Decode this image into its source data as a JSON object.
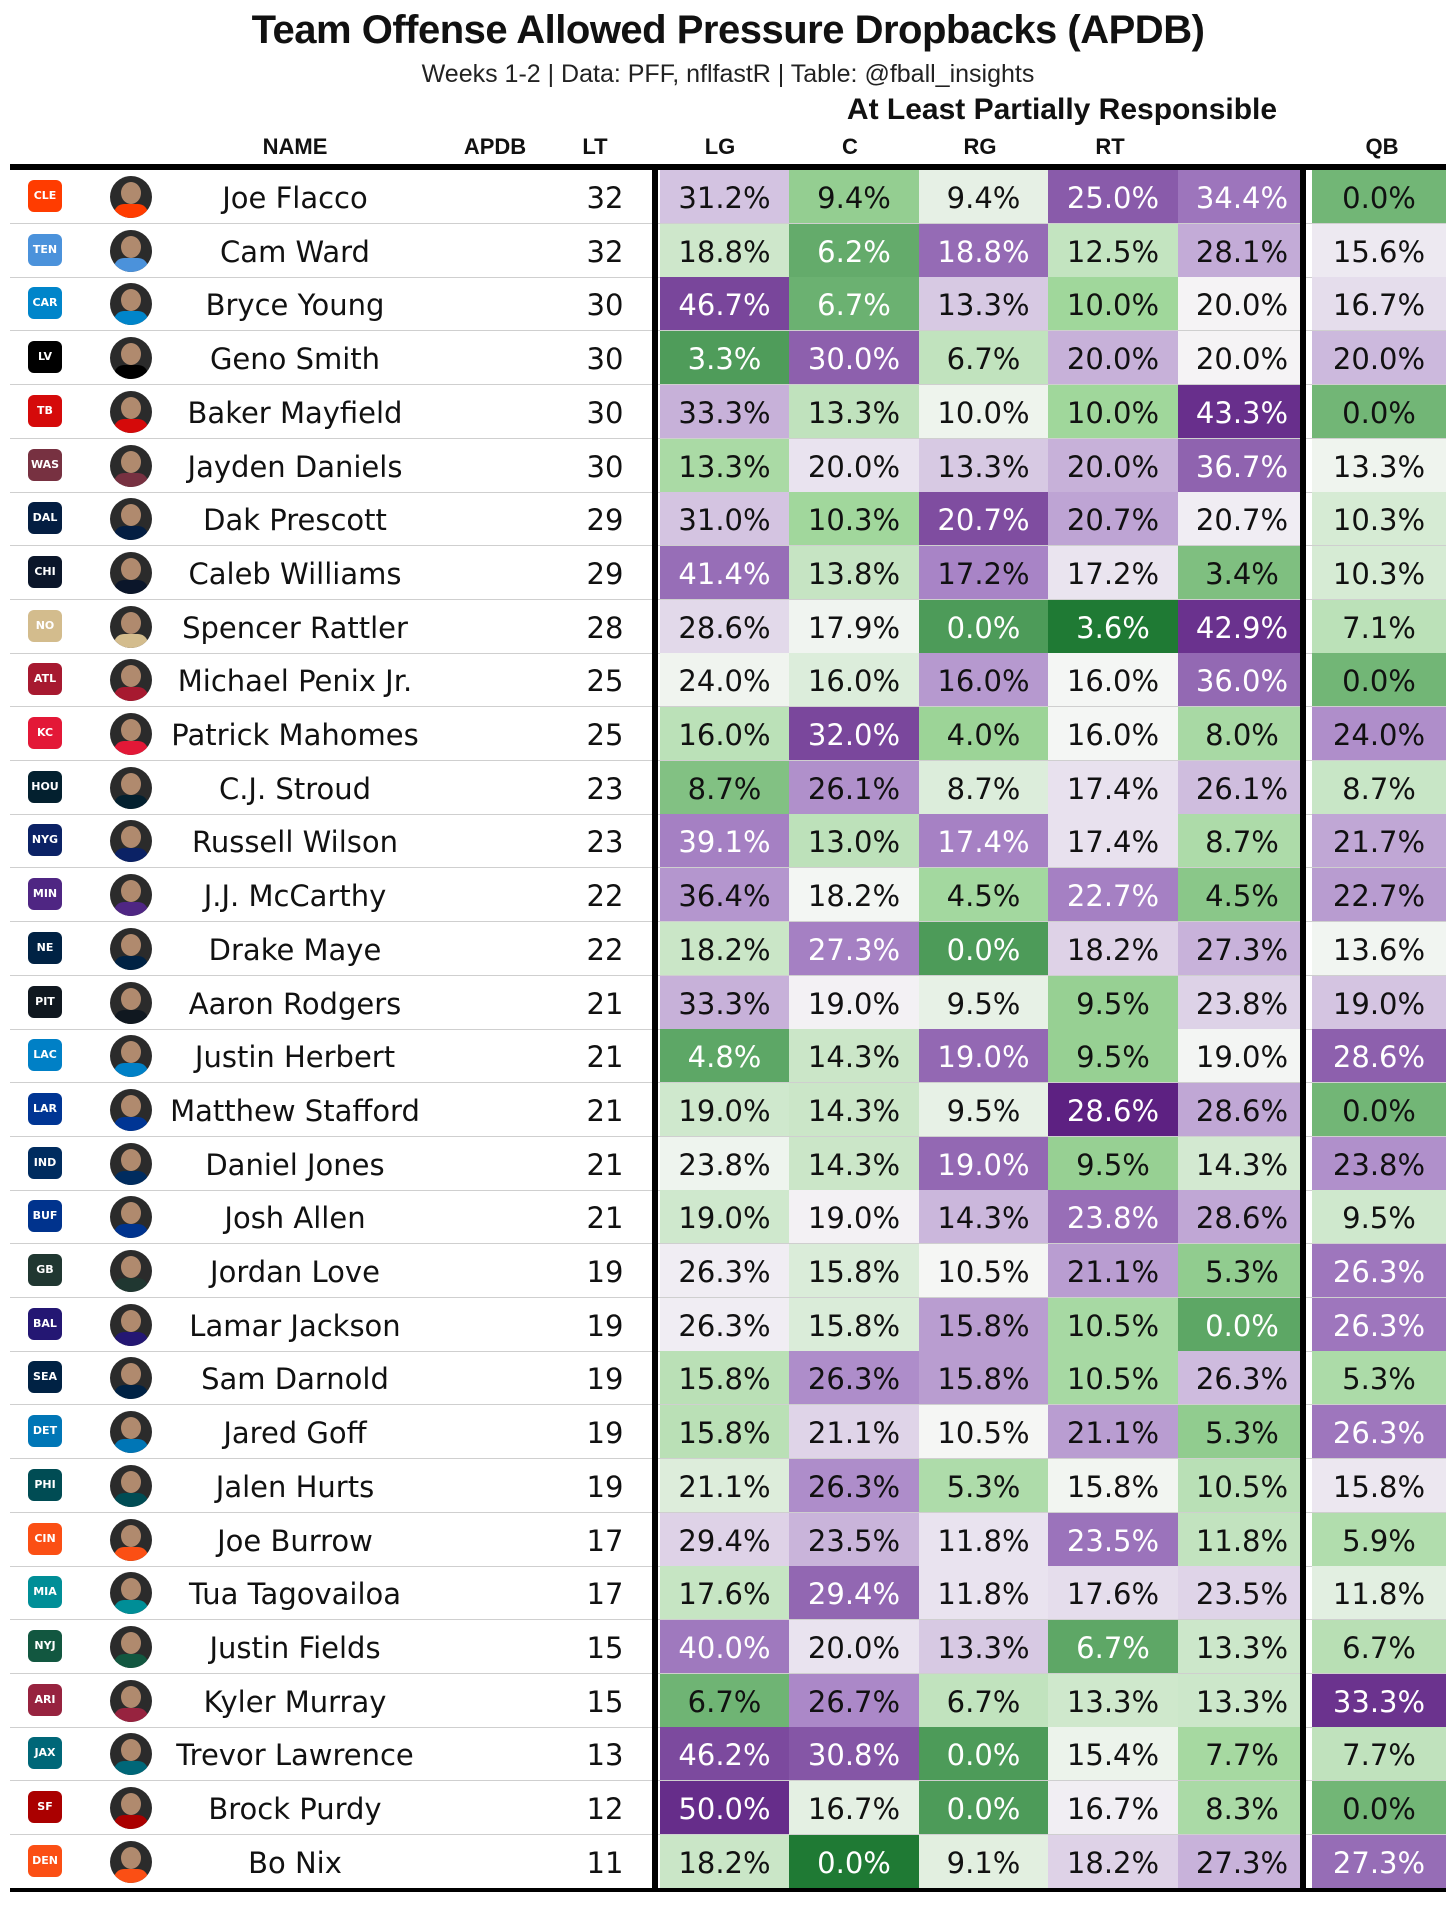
{
  "header": {
    "title": "Team Offense Allowed Pressure Dropbacks (APDB)",
    "subtitle": "Weeks 1-2 | Data: PFF, nflfastR | Table: @fball_insights",
    "spanner": "At Least Partially Responsible",
    "columns": {
      "name": "NAME",
      "apdb": "APDB",
      "lt": "LT",
      "lg": "LG",
      "c": "C",
      "rg": "RG",
      "rt": "RT",
      "qb": "QB"
    }
  },
  "chart_data": {
    "type": "table",
    "title": "Team Offense Allowed Pressure Dropbacks (APDB)",
    "subtitle": "Weeks 1-2 | Data: PFF, nflfastR | Table: @fball_insights",
    "columns": [
      "NAME",
      "APDB",
      "LT",
      "LG",
      "C",
      "RG",
      "RT",
      "QB"
    ],
    "rows": [
      {
        "team": "CLE",
        "name": "Joe Flacco",
        "apdb": 32,
        "values": [
          31.2,
          9.4,
          9.4,
          25.0,
          34.4,
          0.0
        ]
      },
      {
        "team": "TEN",
        "name": "Cam Ward",
        "apdb": 32,
        "values": [
          18.8,
          6.2,
          18.8,
          12.5,
          28.1,
          15.6
        ]
      },
      {
        "team": "CAR",
        "name": "Bryce Young",
        "apdb": 30,
        "values": [
          46.7,
          6.7,
          13.3,
          10.0,
          20.0,
          16.7
        ]
      },
      {
        "team": "LV",
        "name": "Geno Smith",
        "apdb": 30,
        "values": [
          3.3,
          30.0,
          6.7,
          20.0,
          20.0,
          20.0
        ]
      },
      {
        "team": "TB",
        "name": "Baker Mayfield",
        "apdb": 30,
        "values": [
          33.3,
          13.3,
          10.0,
          10.0,
          43.3,
          0.0
        ]
      },
      {
        "team": "WAS",
        "name": "Jayden Daniels",
        "apdb": 30,
        "values": [
          13.3,
          20.0,
          13.3,
          20.0,
          36.7,
          13.3
        ]
      },
      {
        "team": "DAL",
        "name": "Dak Prescott",
        "apdb": 29,
        "values": [
          31.0,
          10.3,
          20.7,
          20.7,
          20.7,
          10.3
        ]
      },
      {
        "team": "CHI",
        "name": "Caleb Williams",
        "apdb": 29,
        "values": [
          41.4,
          13.8,
          17.2,
          17.2,
          3.4,
          10.3
        ]
      },
      {
        "team": "NO",
        "name": "Spencer Rattler",
        "apdb": 28,
        "values": [
          28.6,
          17.9,
          0.0,
          3.6,
          42.9,
          7.1
        ]
      },
      {
        "team": "ATL",
        "name": "Michael Penix Jr.",
        "apdb": 25,
        "values": [
          24.0,
          16.0,
          16.0,
          16.0,
          36.0,
          0.0
        ]
      },
      {
        "team": "KC",
        "name": "Patrick Mahomes",
        "apdb": 25,
        "values": [
          16.0,
          32.0,
          4.0,
          16.0,
          8.0,
          24.0
        ]
      },
      {
        "team": "HOU",
        "name": "C.J. Stroud",
        "apdb": 23,
        "values": [
          8.7,
          26.1,
          8.7,
          17.4,
          26.1,
          8.7
        ]
      },
      {
        "team": "NYG",
        "name": "Russell Wilson",
        "apdb": 23,
        "values": [
          39.1,
          13.0,
          17.4,
          17.4,
          8.7,
          21.7
        ]
      },
      {
        "team": "MIN",
        "name": "J.J. McCarthy",
        "apdb": 22,
        "values": [
          36.4,
          18.2,
          4.5,
          22.7,
          4.5,
          22.7
        ]
      },
      {
        "team": "NE",
        "name": "Drake Maye",
        "apdb": 22,
        "values": [
          18.2,
          27.3,
          0.0,
          18.2,
          27.3,
          13.6
        ]
      },
      {
        "team": "PIT",
        "name": "Aaron Rodgers",
        "apdb": 21,
        "values": [
          33.3,
          19.0,
          9.5,
          9.5,
          23.8,
          19.0
        ]
      },
      {
        "team": "LAC",
        "name": "Justin Herbert",
        "apdb": 21,
        "values": [
          4.8,
          14.3,
          19.0,
          9.5,
          19.0,
          28.6
        ]
      },
      {
        "team": "LAR",
        "name": "Matthew Stafford",
        "apdb": 21,
        "values": [
          19.0,
          14.3,
          9.5,
          28.6,
          28.6,
          0.0
        ]
      },
      {
        "team": "IND",
        "name": "Daniel Jones",
        "apdb": 21,
        "values": [
          23.8,
          14.3,
          19.0,
          9.5,
          14.3,
          23.8
        ]
      },
      {
        "team": "BUF",
        "name": "Josh Allen",
        "apdb": 21,
        "values": [
          19.0,
          19.0,
          14.3,
          23.8,
          28.6,
          9.5
        ]
      },
      {
        "team": "GB",
        "name": "Jordan Love",
        "apdb": 19,
        "values": [
          26.3,
          15.8,
          10.5,
          21.1,
          5.3,
          26.3
        ]
      },
      {
        "team": "BAL",
        "name": "Lamar Jackson",
        "apdb": 19,
        "values": [
          26.3,
          15.8,
          15.8,
          10.5,
          0.0,
          26.3
        ]
      },
      {
        "team": "SEA",
        "name": "Sam Darnold",
        "apdb": 19,
        "values": [
          15.8,
          26.3,
          15.8,
          10.5,
          26.3,
          5.3
        ]
      },
      {
        "team": "DET",
        "name": "Jared Goff",
        "apdb": 19,
        "values": [
          15.8,
          21.1,
          10.5,
          21.1,
          5.3,
          26.3
        ]
      },
      {
        "team": "PHI",
        "name": "Jalen Hurts",
        "apdb": 19,
        "values": [
          21.1,
          26.3,
          5.3,
          15.8,
          10.5,
          15.8
        ]
      },
      {
        "team": "CIN",
        "name": "Joe Burrow",
        "apdb": 17,
        "values": [
          29.4,
          23.5,
          11.8,
          23.5,
          11.8,
          5.9
        ]
      },
      {
        "team": "MIA",
        "name": "Tua Tagovailoa",
        "apdb": 17,
        "values": [
          17.6,
          29.4,
          11.8,
          17.6,
          23.5,
          11.8
        ]
      },
      {
        "team": "NYJ",
        "name": "Justin Fields",
        "apdb": 15,
        "values": [
          40.0,
          20.0,
          13.3,
          6.7,
          13.3,
          6.7
        ]
      },
      {
        "team": "ARI",
        "name": "Kyler Murray",
        "apdb": 15,
        "values": [
          6.7,
          26.7,
          6.7,
          13.3,
          13.3,
          33.3
        ]
      },
      {
        "team": "JAX",
        "name": "Trevor Lawrence",
        "apdb": 13,
        "values": [
          46.2,
          30.8,
          0.0,
          15.4,
          7.7,
          7.7
        ]
      },
      {
        "team": "SF",
        "name": "Brock Purdy",
        "apdb": 12,
        "values": [
          50.0,
          16.7,
          0.0,
          16.7,
          8.3,
          0.0
        ]
      },
      {
        "team": "DEN",
        "name": "Bo Nix",
        "apdb": 11,
        "values": [
          18.2,
          0.0,
          9.1,
          18.2,
          27.3,
          27.3
        ]
      }
    ]
  },
  "colors": {
    "purple_dark": "#5b1e80",
    "purple_mid": "#a884c6",
    "neutral": "#f7f7f7",
    "green_mid": "#9fd69a",
    "green_dark": "#1f7a34",
    "teams": {
      "CLE": "#ff3c00",
      "TEN": "#4b92db",
      "CAR": "#0085ca",
      "LV": "#000000",
      "TB": "#d50a0a",
      "WAS": "#773141",
      "DAL": "#041e42",
      "CHI": "#0b162a",
      "NO": "#d3bc8d",
      "ATL": "#a71930",
      "KC": "#e31837",
      "HOU": "#03202f",
      "NYG": "#0b2265",
      "MIN": "#4f2683",
      "NE": "#002244",
      "PIT": "#101820",
      "LAC": "#0080c6",
      "LAR": "#003594",
      "IND": "#002c5f",
      "BUF": "#00338d",
      "GB": "#203731",
      "BAL": "#241773",
      "SEA": "#002244",
      "DET": "#0076b6",
      "PHI": "#004c54",
      "CIN": "#fb4f14",
      "MIA": "#008e97",
      "NYJ": "#125740",
      "ARI": "#97233f",
      "JAX": "#006778",
      "SF": "#aa0000",
      "DEN": "#fb4f14"
    }
  }
}
